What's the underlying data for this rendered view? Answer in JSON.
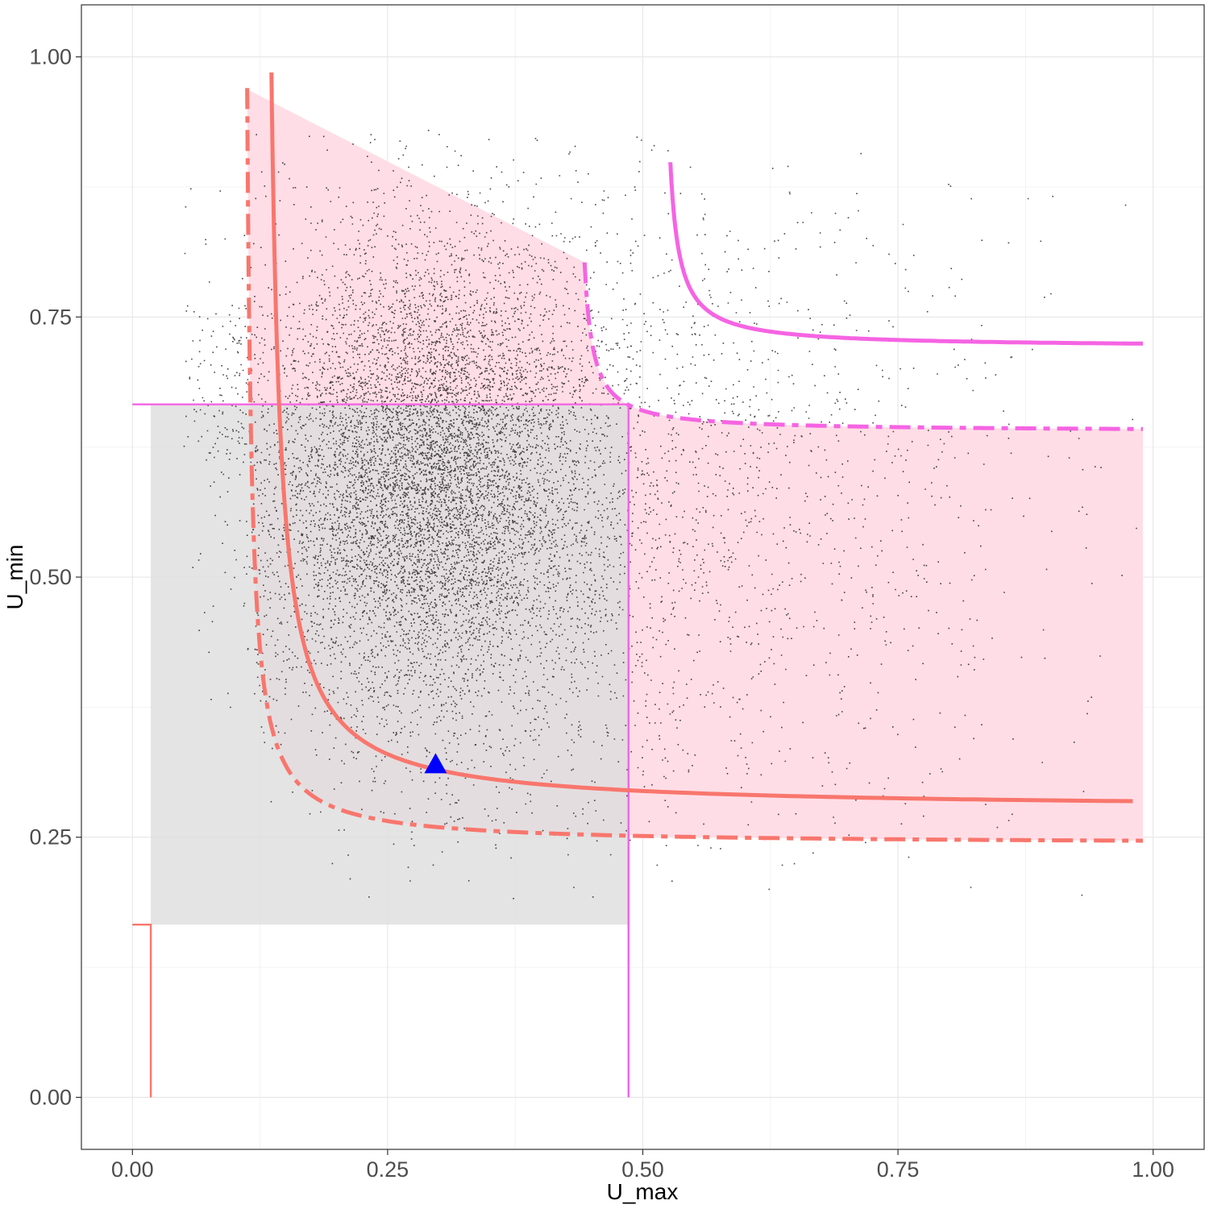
{
  "chart_data": {
    "type": "scatter",
    "xlabel": "U_max",
    "ylabel": "U_min",
    "xlim": [
      -0.05,
      1.05
    ],
    "ylim": [
      -0.05,
      1.05
    ],
    "x_ticks": [
      0.0,
      0.25,
      0.5,
      0.75,
      1.0
    ],
    "x_tick_labels": [
      "0.00",
      "0.25",
      "0.50",
      "0.75",
      "1.00"
    ],
    "y_ticks": [
      0.0,
      0.25,
      0.5,
      0.75,
      1.0
    ],
    "y_tick_labels": [
      "0.00",
      "0.25",
      "0.50",
      "0.75",
      "1.00"
    ],
    "grid": true,
    "colors": {
      "salmon": "#F8766D",
      "pink": "#F564E3",
      "pink_fill": "#FFDDE6",
      "grey_fill": "#DCDCDC",
      "marker": "#0000FF",
      "points": "#000000"
    },
    "grey_rect": {
      "x": [
        0.018,
        0.486
      ],
      "y": [
        0.166,
        0.666
      ]
    },
    "pink_reference_lines": {
      "vertical_x": 0.486,
      "horizontal_y": 0.666,
      "x_from": 0.0,
      "y_to": 0.0
    },
    "salmon_step": {
      "x": 0.018,
      "y": 0.166
    },
    "curves": [
      {
        "name": "",
        "color": "salmon",
        "style": "solid",
        "x0": 0.127,
        "y0": 0.277,
        "a": 0.0065,
        "x_range": [
          0.128,
          0.98
        ],
        "y_max": 0.985
      },
      {
        "name": "",
        "color": "salmon",
        "style": "dashed",
        "x0": 0.108,
        "y0": 0.243,
        "a": 0.0032,
        "x_range": [
          0.11,
          0.99
        ],
        "y_max": 0.97
      },
      {
        "name": "",
        "color": "pink",
        "style": "dashed",
        "x0": 0.435,
        "y0": 0.64,
        "a": 0.0013,
        "x_range": [
          0.443,
          0.99
        ],
        "y_max": 0.985
      },
      {
        "name": "",
        "color": "pink",
        "style": "solid",
        "x0": 0.518,
        "y0": 0.721,
        "a": 0.0016,
        "x_range": [
          0.527,
          0.99
        ],
        "y_max": 0.99
      }
    ],
    "pink_region": {
      "x_range": [
        0.108,
        0.99
      ]
    },
    "marker_point": {
      "x": 0.297,
      "y": 0.32,
      "shape": "triangle"
    },
    "scatter_points_approx_count": 11000
  }
}
